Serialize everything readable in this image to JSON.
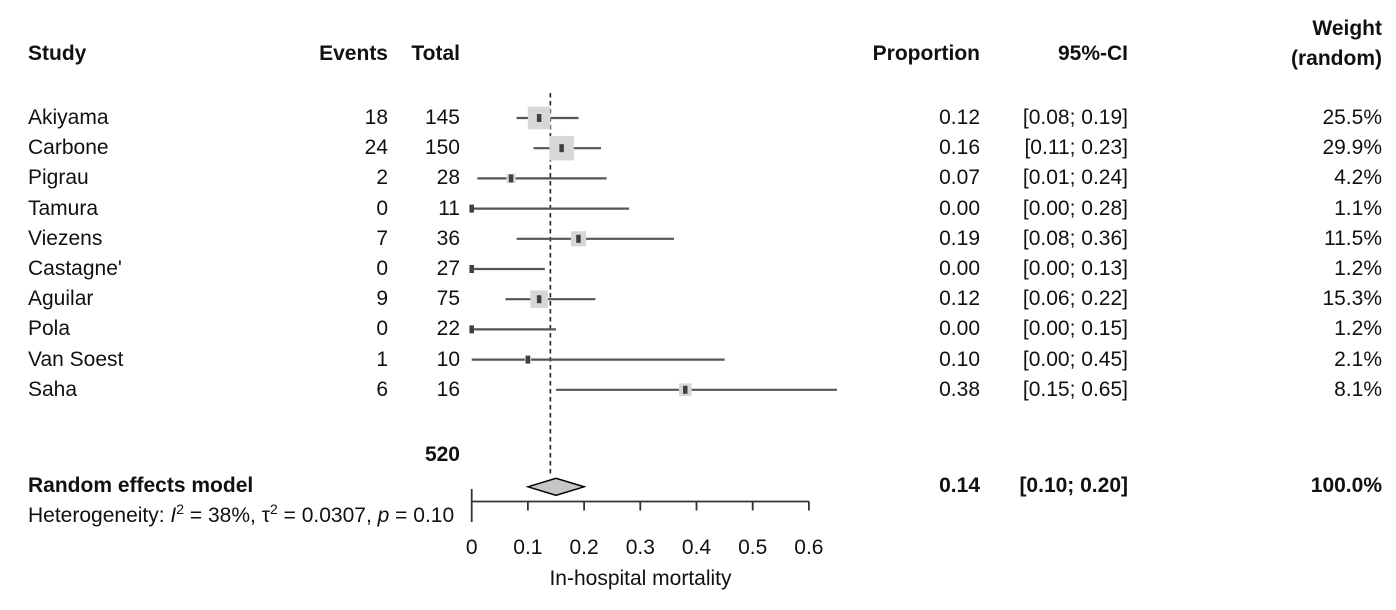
{
  "columns": {
    "study": "Study",
    "events": "Events",
    "total": "Total",
    "proportion": "Proportion",
    "ci": "95%-CI",
    "weight_line1": "Weight",
    "weight_line2": "(random)"
  },
  "heterogeneity": {
    "prefix": "Heterogeneity: ",
    "i2_label": "I",
    "sup2": "2",
    "i2_rest": " = 38%, ",
    "tau_label": "τ",
    "tau_rest": " = 0.0307, ",
    "p_label": "p",
    "p_rest": " = 0.10"
  },
  "chart_data": {
    "type": "forest",
    "x_axis": {
      "label": "In-hospital mortality",
      "range": [
        0,
        0.65
      ],
      "ticks": [
        {
          "value": 0,
          "label": "0"
        },
        {
          "value": 0.1,
          "label": "0.1"
        },
        {
          "value": 0.2,
          "label": "0.2"
        },
        {
          "value": 0.3,
          "label": "0.3"
        },
        {
          "value": 0.4,
          "label": "0.4"
        },
        {
          "value": 0.5,
          "label": "0.5"
        },
        {
          "value": 0.6,
          "label": "0.6"
        }
      ]
    },
    "studies": [
      {
        "name": "Akiyama",
        "events": "18",
        "total": "145",
        "proportion": "0.12",
        "ci_text": "[0.08; 0.19]",
        "weight_text": "25.5%",
        "estimate": 0.12,
        "ci_lower": 0.08,
        "ci_upper": 0.19,
        "weight_pct": 25.5
      },
      {
        "name": "Carbone",
        "events": "24",
        "total": "150",
        "proportion": "0.16",
        "ci_text": "[0.11; 0.23]",
        "weight_text": "29.9%",
        "estimate": 0.16,
        "ci_lower": 0.11,
        "ci_upper": 0.23,
        "weight_pct": 29.9
      },
      {
        "name": "Pigrau",
        "events": "2",
        "total": "28",
        "proportion": "0.07",
        "ci_text": "[0.01; 0.24]",
        "weight_text": "4.2%",
        "estimate": 0.07,
        "ci_lower": 0.01,
        "ci_upper": 0.24,
        "weight_pct": 4.2
      },
      {
        "name": "Tamura",
        "events": "0",
        "total": "11",
        "proportion": "0.00",
        "ci_text": "[0.00; 0.28]",
        "weight_text": "1.1%",
        "estimate": 0.0,
        "ci_lower": 0.0,
        "ci_upper": 0.28,
        "weight_pct": 1.1
      },
      {
        "name": "Viezens",
        "events": "7",
        "total": "36",
        "proportion": "0.19",
        "ci_text": "[0.08; 0.36]",
        "weight_text": "11.5%",
        "estimate": 0.19,
        "ci_lower": 0.08,
        "ci_upper": 0.36,
        "weight_pct": 11.5
      },
      {
        "name": "Castagne'",
        "events": "0",
        "total": "27",
        "proportion": "0.00",
        "ci_text": "[0.00; 0.13]",
        "weight_text": "1.2%",
        "estimate": 0.0,
        "ci_lower": 0.0,
        "ci_upper": 0.13,
        "weight_pct": 1.2
      },
      {
        "name": "Aguilar",
        "events": "9",
        "total": "75",
        "proportion": "0.12",
        "ci_text": "[0.06; 0.22]",
        "weight_text": "15.3%",
        "estimate": 0.12,
        "ci_lower": 0.06,
        "ci_upper": 0.22,
        "weight_pct": 15.3
      },
      {
        "name": "Pola",
        "events": "0",
        "total": "22",
        "proportion": "0.00",
        "ci_text": "[0.00; 0.15]",
        "weight_text": "1.2%",
        "estimate": 0.0,
        "ci_lower": 0.0,
        "ci_upper": 0.15,
        "weight_pct": 1.2
      },
      {
        "name": "Van Soest",
        "events": "1",
        "total": "10",
        "proportion": "0.10",
        "ci_text": "[0.00; 0.45]",
        "weight_text": "2.1%",
        "estimate": 0.1,
        "ci_lower": 0.0,
        "ci_upper": 0.45,
        "weight_pct": 2.1
      },
      {
        "name": "Saha",
        "events": "6",
        "total": "16",
        "proportion": "0.38",
        "ci_text": "[0.15; 0.65]",
        "weight_text": "8.1%",
        "estimate": 0.38,
        "ci_lower": 0.15,
        "ci_upper": 0.65,
        "weight_pct": 8.1
      }
    ],
    "pooled": {
      "label": "Random effects model",
      "total_patients": "520",
      "proportion_text": "0.14",
      "ci_text": "[0.10; 0.20]",
      "weight_text": "100.0%",
      "estimate": 0.14,
      "ci_lower": 0.1,
      "ci_upper": 0.2
    },
    "style": {
      "square_fill": "#d7d7d7",
      "marker_fill": "#3f3f3f",
      "ci_line_color": "#555555",
      "diamond_fill": "#c6c6c6",
      "diamond_stroke": "#000000",
      "dashed_line_color": "#222222",
      "axis_color": "#333333",
      "text_color": "#111111"
    }
  }
}
